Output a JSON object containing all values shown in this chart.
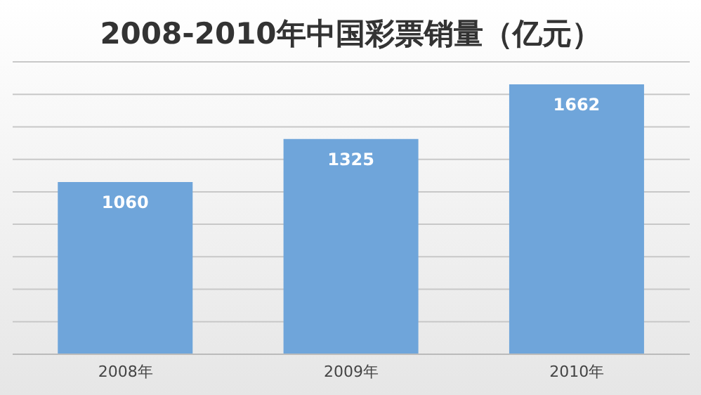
{
  "chart_data": {
    "type": "bar",
    "title": "2008-2010年中国彩票销量（亿元）",
    "categories": [
      "2008年",
      "2009年",
      "2010年"
    ],
    "values": [
      1060,
      1325,
      1662
    ],
    "color": "#6fa5da",
    "data_labels": true,
    "grid": "y",
    "tick_labels": "x"
  }
}
